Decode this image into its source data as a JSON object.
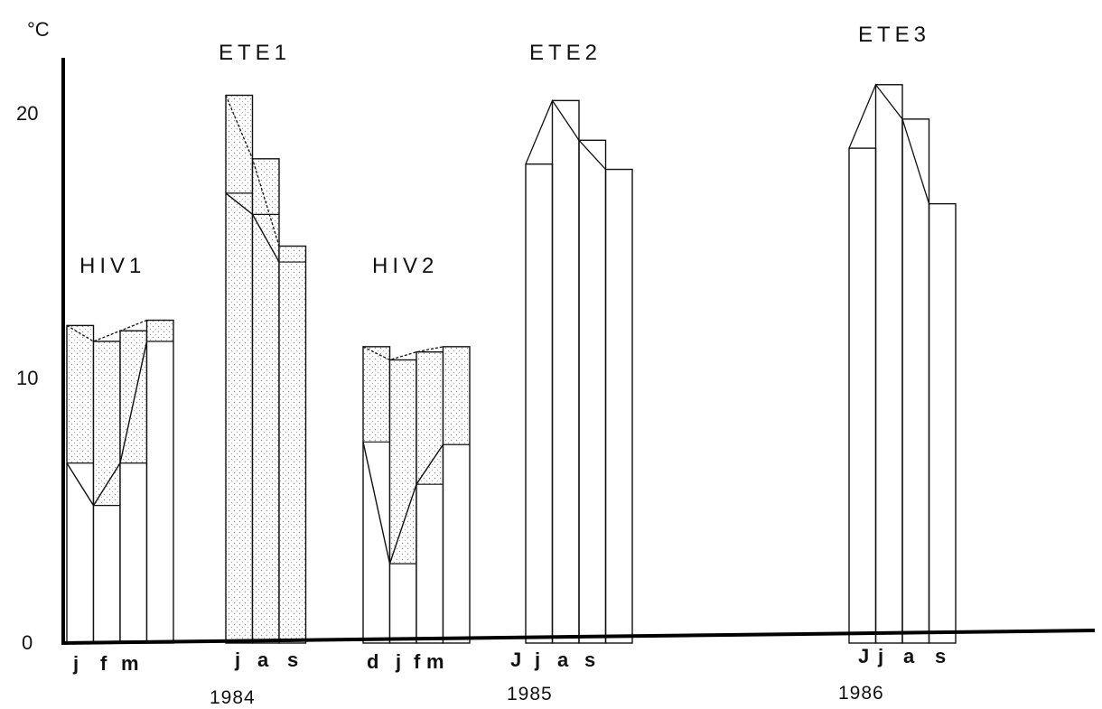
{
  "chart_data": {
    "type": "bar",
    "ylabel": "°C",
    "yticks": [
      "0",
      "10",
      "20"
    ],
    "ylim": [
      0,
      22
    ],
    "groups": [
      {
        "label": "HIV1",
        "months": [
          "j",
          "f",
          "m",
          ""
        ],
        "top": [
          12.0,
          11.4,
          11.8,
          12.2
        ],
        "bottom": [
          6.8,
          5.2,
          6.8,
          11.4
        ],
        "shaded": true
      },
      {
        "label": "ETE1",
        "months": [
          "j",
          "a",
          "s"
        ],
        "top": [
          20.7,
          18.3,
          15.0
        ],
        "bottom": [
          17.0,
          16.2,
          14.4
        ],
        "shaded": true
      },
      {
        "label": "HIV2",
        "months": [
          "d",
          "j",
          "f",
          "m"
        ],
        "top": [
          11.2,
          10.7,
          11.0,
          11.2
        ],
        "bottom": [
          7.6,
          3.0,
          6.0,
          7.5
        ],
        "shaded": true
      },
      {
        "label": "ETE2",
        "months": [
          "J",
          "j",
          "a",
          "s"
        ],
        "top": [
          18.1,
          20.5,
          19.0,
          17.9
        ],
        "bottom": [
          18.1,
          20.5,
          19.0,
          17.9
        ],
        "shaded": false
      },
      {
        "label": "ETE3",
        "months": [
          "J",
          "j",
          "a",
          "s"
        ],
        "top": [
          18.7,
          21.1,
          19.8,
          16.6
        ],
        "bottom": [
          18.7,
          21.1,
          19.8,
          16.6
        ],
        "shaded": false
      }
    ],
    "years": [
      "1984",
      "1985",
      "1986"
    ]
  }
}
